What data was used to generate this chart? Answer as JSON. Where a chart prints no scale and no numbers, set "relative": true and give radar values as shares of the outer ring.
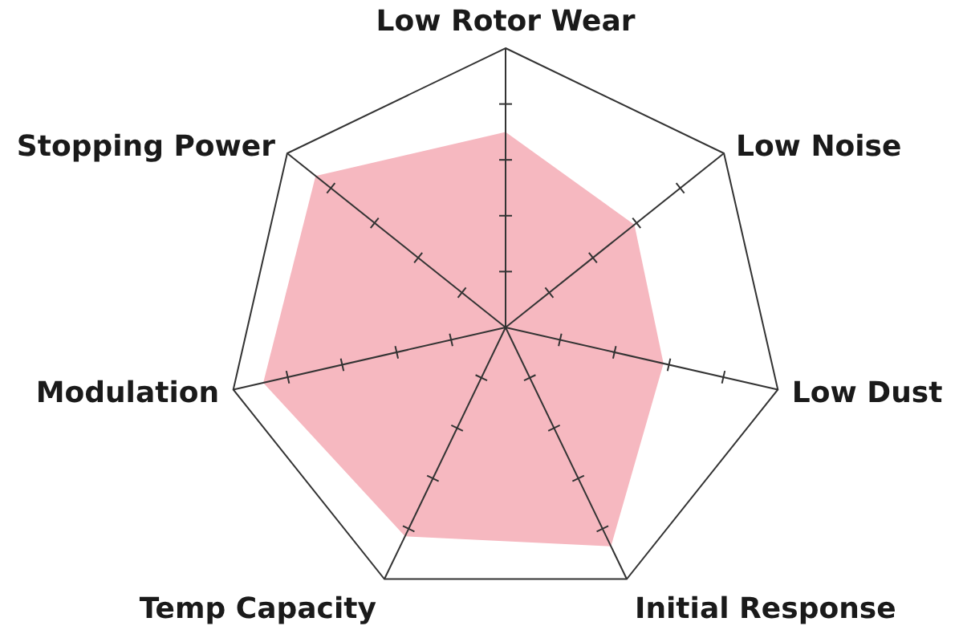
{
  "chart_data": {
    "type": "radar",
    "relative": true,
    "categories": [
      "Low Rotor Wear",
      "Low Noise",
      "Low Dust",
      "Initial Response",
      "Temp Capacity",
      "Modulation",
      "Stopping Power"
    ],
    "series": [
      {
        "color": "#f6b8c0",
        "values": [
          0.7,
          0.59,
          0.58,
          0.87,
          0.83,
          0.89,
          0.87
        ]
      }
    ]
  }
}
